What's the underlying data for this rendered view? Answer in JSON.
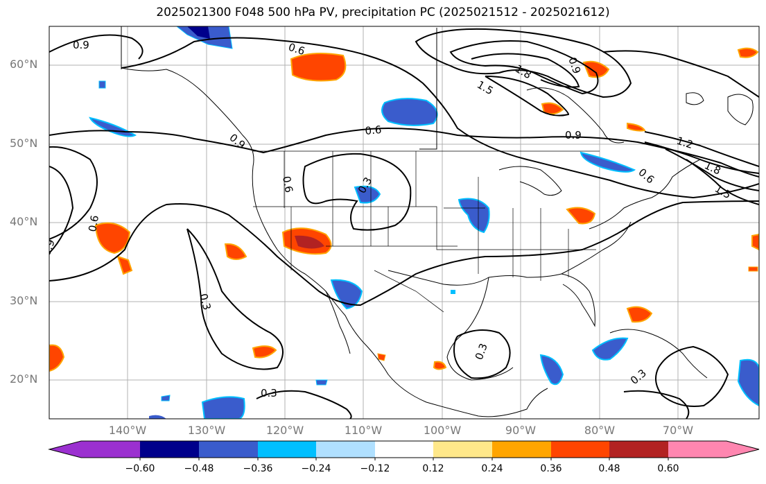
{
  "title": "2025021300 F048 500 hPa PV, precipitation PC (2025021512 - 2025021612)",
  "lat_labels": [
    "60°N",
    "50°N",
    "40°N",
    "30°N",
    "20°N"
  ],
  "lon_labels": [
    "140°W",
    "130°W",
    "120°W",
    "110°W",
    "100°W",
    "90°W",
    "80°W",
    "70°W"
  ],
  "contour_labels": [
    "0.9",
    "0.6",
    "1.8",
    "1.5",
    "0.6",
    "0.9",
    "1.2",
    "1.8",
    "0.9",
    "0.6",
    "0.3",
    "0.6",
    "0.3",
    "0.3",
    "0.3",
    "0.3",
    "0.9",
    "0.6",
    "0.9",
    "1.5"
  ],
  "colorbar": {
    "ticks": [
      "−0.60",
      "−0.48",
      "−0.36",
      "−0.24",
      "−0.12",
      "0.12",
      "0.24",
      "0.36",
      "0.48",
      "0.60"
    ],
    "colors": [
      "#9b30d0",
      "#00008b",
      "#3a5ccc",
      "#00bfff",
      "#b0e0ff",
      "#ffffff",
      "#ffe88a",
      "#ffa500",
      "#ff4500",
      "#b22222",
      "#ff86b0",
      "#ff86b0"
    ]
  }
}
